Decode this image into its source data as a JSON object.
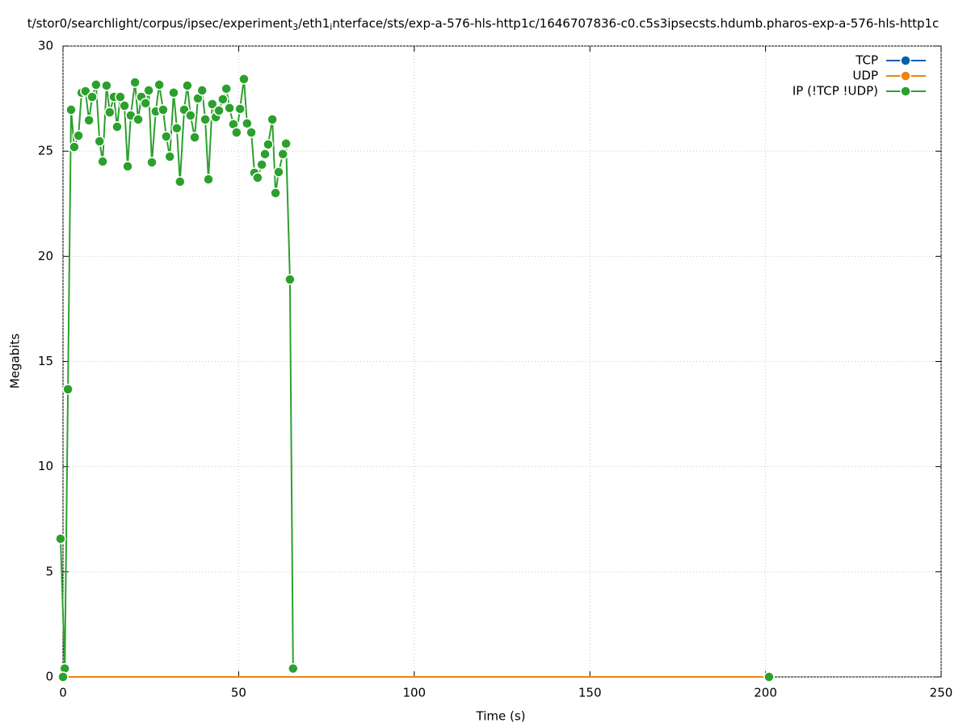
{
  "chart_data": {
    "type": "line",
    "title": "t/stor0/searchlight/corpus/ipsec/experiment_3/eth1_interface/sts/exp-a-576-hls-http1c/1646707836-c0.c5s3ipsecsts.hdumb.pharos-exp-a-576-hls-http1c",
    "x_label": "Time (s)",
    "y_label": "Megabits",
    "xlim": [
      0,
      250
    ],
    "xticks": [
      0,
      50,
      100,
      150,
      200,
      250
    ],
    "ylim": [
      0,
      30
    ],
    "yticks": [
      0,
      5,
      10,
      15,
      20,
      25,
      30
    ],
    "grid": true,
    "legend": "top-right",
    "series": [
      {
        "name": "TCP",
        "color": "#0060ad",
        "x": [
          0,
          201
        ],
        "values": [
          0,
          0
        ]
      },
      {
        "name": "UDP",
        "color": "#f0820f",
        "x": [
          0,
          201
        ],
        "values": [
          0,
          0
        ]
      },
      {
        "name": "IP (!TCP  !UDP)",
        "color": "#2ca02c",
        "x": [
          -0.7,
          0.5,
          1.4,
          2.3,
          3.2,
          4.4,
          5.3,
          6.4,
          7.4,
          8.3,
          9.4,
          10.4,
          11.3,
          12.4,
          13.3,
          14.5,
          15.4,
          16.3,
          17.5,
          18.4,
          19.3,
          20.5,
          21.4,
          22.3,
          23.5,
          24.4,
          25.3,
          26.4,
          27.4,
          28.5,
          29.4,
          30.4,
          31.5,
          32.4,
          33.3,
          34.5,
          35.4,
          36.3,
          37.5,
          38.4,
          39.6,
          40.5,
          41.4,
          42.5,
          43.5,
          44.4,
          45.5,
          46.5,
          47.4,
          48.5,
          49.4,
          50.4,
          51.5,
          52.4,
          53.6,
          54.5,
          55.4,
          56.6,
          57.5,
          58.4,
          59.6,
          60.5,
          61.4,
          62.6,
          63.5,
          64.6,
          65.5,
          null,
          0,
          null,
          201
        ],
        "values": [
          6.57,
          0.4,
          13.68,
          26.97,
          25.2,
          25.74,
          27.78,
          27.85,
          26.47,
          27.58,
          28.16,
          25.47,
          24.51,
          28.12,
          26.85,
          27.58,
          26.16,
          27.58,
          27.16,
          24.28,
          26.7,
          28.27,
          26.51,
          27.58,
          27.28,
          27.89,
          24.47,
          26.89,
          28.16,
          26.97,
          25.7,
          24.74,
          27.78,
          26.09,
          23.55,
          26.97,
          28.12,
          26.7,
          25.66,
          27.51,
          27.89,
          26.51,
          23.66,
          27.24,
          26.62,
          26.93,
          27.47,
          27.97,
          27.05,
          26.28,
          25.89,
          27.01,
          28.43,
          26.32,
          25.89,
          23.97,
          23.74,
          24.36,
          24.86,
          25.32,
          26.51,
          23.01,
          24.01,
          24.86,
          25.36,
          18.9,
          0.4,
          null,
          0,
          null,
          0
        ]
      }
    ]
  }
}
